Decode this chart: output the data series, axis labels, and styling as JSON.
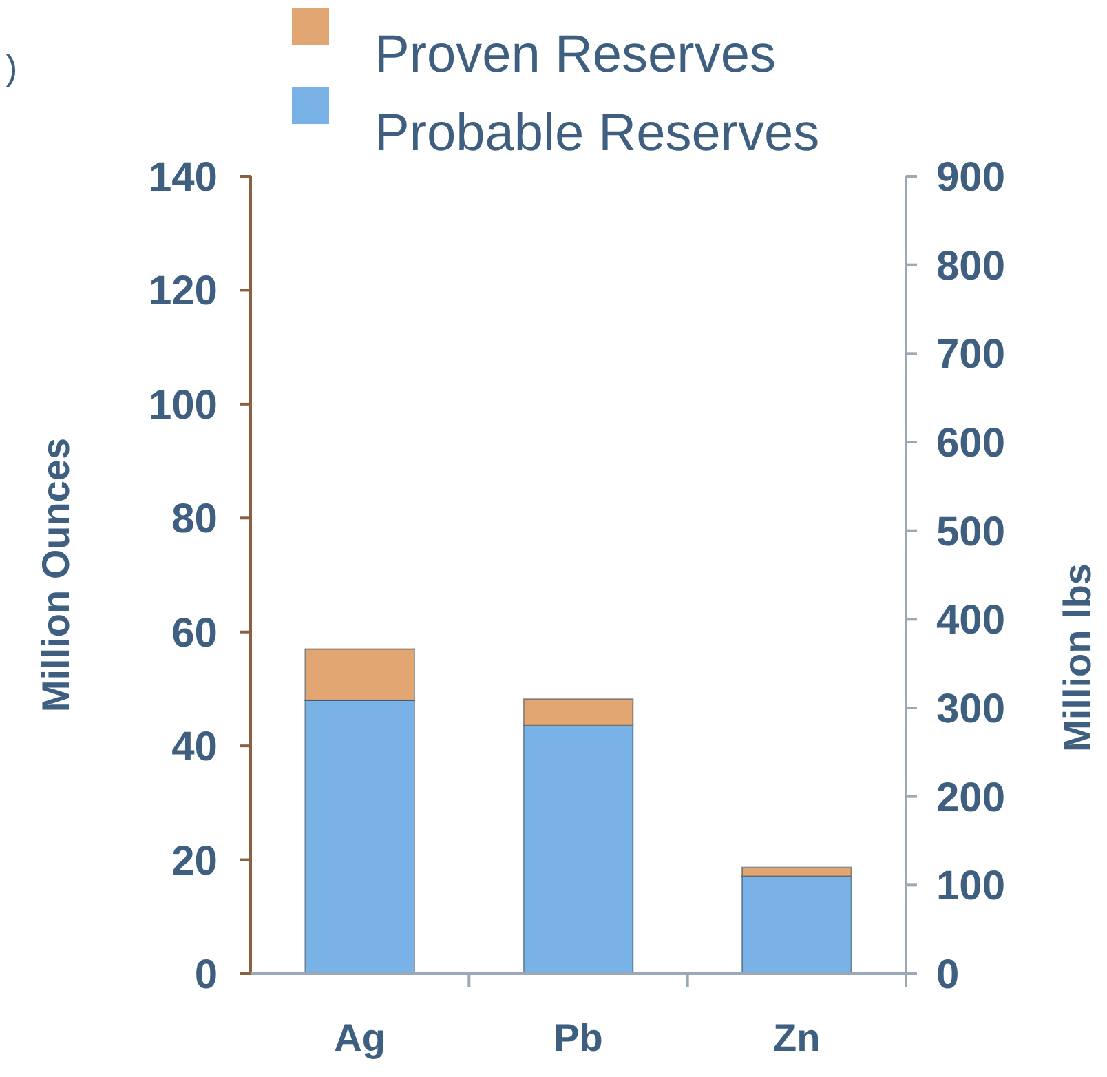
{
  "chart_data": {
    "type": "bar",
    "stacked": true,
    "categories": [
      "Ag",
      "Pb",
      "Zn"
    ],
    "series": [
      {
        "name": "Probable Reserves",
        "color": "#78b2e6",
        "values": [
          48,
          null,
          null
        ]
      },
      {
        "name": "Proven Reserves",
        "color": "#e2a673",
        "values": [
          9,
          null,
          null
        ]
      },
      {
        "color": "#78b2e6",
        "axis": "y2",
        "values": [
          null,
          280,
          110
        ]
      },
      {
        "color": "#e2a673",
        "axis": "y2",
        "values": [
          null,
          30,
          10
        ]
      }
    ],
    "ylabel": "Million Ounces",
    "y2label": "Million lbs",
    "ylim": [
      0,
      140
    ],
    "yticks": [
      0,
      20,
      40,
      60,
      80,
      100,
      120,
      140
    ],
    "y2lim": [
      0,
      900
    ],
    "y2ticks": [
      0,
      100,
      200,
      300,
      400,
      500,
      600,
      700,
      800,
      900
    ],
    "legend": "top",
    "grid": false,
    "annotations": [
      ")"
    ]
  }
}
